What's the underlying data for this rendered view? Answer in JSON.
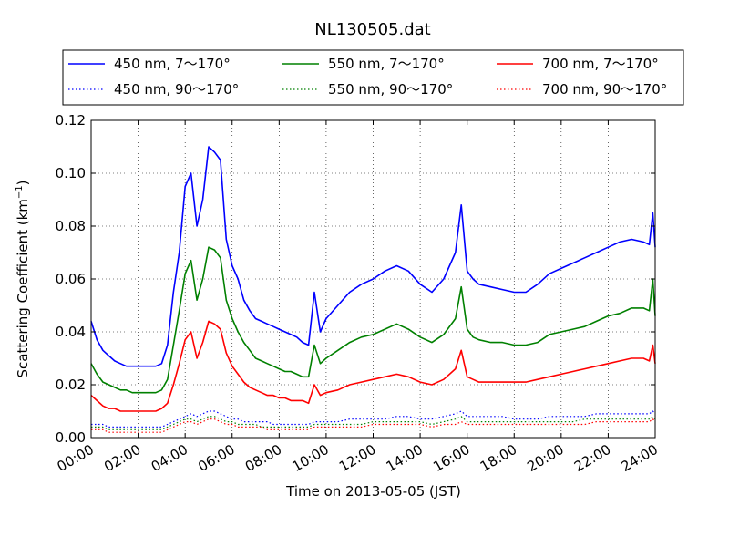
{
  "chart_data": {
    "type": "line",
    "title": "NL130505.dat",
    "xlabel": "Time on 2013-05-05 (JST)",
    "ylabel_main": "Scattering Coefficient (km",
    "ylabel_sup": "−1",
    "ylabel_close": ")",
    "xlim": [
      0,
      24
    ],
    "ylim": [
      0,
      0.12
    ],
    "grid": true,
    "legend_position": "top",
    "x_tick_labels": [
      "00:00",
      "02:00",
      "04:00",
      "06:00",
      "08:00",
      "10:00",
      "12:00",
      "14:00",
      "16:00",
      "18:00",
      "20:00",
      "22:00",
      "24:00"
    ],
    "y_tick_labels": [
      "0.00",
      "0.02",
      "0.04",
      "0.06",
      "0.08",
      "0.10",
      "0.12"
    ],
    "x": [
      0,
      0.25,
      0.5,
      0.75,
      1,
      1.25,
      1.5,
      1.75,
      2,
      2.25,
      2.5,
      2.75,
      3,
      3.25,
      3.5,
      3.75,
      4,
      4.25,
      4.5,
      4.75,
      5,
      5.25,
      5.5,
      5.75,
      6,
      6.25,
      6.5,
      6.75,
      7,
      7.25,
      7.5,
      7.75,
      8,
      8.25,
      8.5,
      8.75,
      9,
      9.25,
      9.5,
      9.75,
      10,
      10.5,
      11,
      11.5,
      12,
      12.5,
      13,
      13.5,
      14,
      14.5,
      15,
      15.5,
      15.75,
      16,
      16.25,
      16.5,
      17,
      17.5,
      18,
      18.5,
      19,
      19.5,
      20,
      20.5,
      21,
      21.5,
      22,
      22.5,
      23,
      23.5,
      23.75,
      23.9,
      24
    ],
    "series": [
      {
        "name": "450 nm, 7～170°",
        "color": "#0000ff",
        "style": "solid",
        "values": [
          0.044,
          0.037,
          0.033,
          0.031,
          0.029,
          0.028,
          0.027,
          0.027,
          0.027,
          0.027,
          0.027,
          0.027,
          0.028,
          0.035,
          0.055,
          0.07,
          0.095,
          0.1,
          0.08,
          0.09,
          0.11,
          0.108,
          0.105,
          0.075,
          0.065,
          0.06,
          0.052,
          0.048,
          0.045,
          0.044,
          0.043,
          0.042,
          0.041,
          0.04,
          0.039,
          0.038,
          0.036,
          0.035,
          0.055,
          0.04,
          0.045,
          0.05,
          0.055,
          0.058,
          0.06,
          0.063,
          0.065,
          0.063,
          0.058,
          0.055,
          0.06,
          0.07,
          0.088,
          0.063,
          0.06,
          0.058,
          0.057,
          0.056,
          0.055,
          0.055,
          0.058,
          0.062,
          0.064,
          0.066,
          0.068,
          0.07,
          0.072,
          0.074,
          0.075,
          0.074,
          0.073,
          0.085,
          0.072
        ]
      },
      {
        "name": "450 nm, 90～170°",
        "color": "#0000ff",
        "style": "dotted",
        "values": [
          0.005,
          0.005,
          0.005,
          0.004,
          0.004,
          0.004,
          0.004,
          0.004,
          0.004,
          0.004,
          0.004,
          0.004,
          0.004,
          0.005,
          0.006,
          0.007,
          0.008,
          0.009,
          0.008,
          0.009,
          0.01,
          0.01,
          0.009,
          0.008,
          0.007,
          0.007,
          0.006,
          0.006,
          0.006,
          0.006,
          0.006,
          0.005,
          0.005,
          0.005,
          0.005,
          0.005,
          0.005,
          0.005,
          0.006,
          0.006,
          0.006,
          0.006,
          0.007,
          0.007,
          0.007,
          0.007,
          0.008,
          0.008,
          0.007,
          0.007,
          0.008,
          0.009,
          0.01,
          0.008,
          0.008,
          0.008,
          0.008,
          0.008,
          0.007,
          0.007,
          0.007,
          0.008,
          0.008,
          0.008,
          0.008,
          0.009,
          0.009,
          0.009,
          0.009,
          0.009,
          0.009,
          0.01,
          0.009
        ]
      },
      {
        "name": "550 nm, 7～170°",
        "color": "#008000",
        "style": "solid",
        "values": [
          0.028,
          0.024,
          0.021,
          0.02,
          0.019,
          0.018,
          0.018,
          0.017,
          0.017,
          0.017,
          0.017,
          0.017,
          0.018,
          0.022,
          0.035,
          0.048,
          0.062,
          0.067,
          0.052,
          0.06,
          0.072,
          0.071,
          0.068,
          0.052,
          0.045,
          0.04,
          0.036,
          0.033,
          0.03,
          0.029,
          0.028,
          0.027,
          0.026,
          0.025,
          0.025,
          0.024,
          0.023,
          0.023,
          0.035,
          0.028,
          0.03,
          0.033,
          0.036,
          0.038,
          0.039,
          0.041,
          0.043,
          0.041,
          0.038,
          0.036,
          0.039,
          0.045,
          0.057,
          0.041,
          0.038,
          0.037,
          0.036,
          0.036,
          0.035,
          0.035,
          0.036,
          0.039,
          0.04,
          0.041,
          0.042,
          0.044,
          0.046,
          0.047,
          0.049,
          0.049,
          0.048,
          0.06,
          0.046
        ]
      },
      {
        "name": "550 nm, 90～170°",
        "color": "#008000",
        "style": "dotted",
        "values": [
          0.004,
          0.004,
          0.004,
          0.003,
          0.003,
          0.003,
          0.003,
          0.003,
          0.003,
          0.003,
          0.003,
          0.003,
          0.003,
          0.004,
          0.005,
          0.006,
          0.007,
          0.007,
          0.006,
          0.007,
          0.008,
          0.008,
          0.007,
          0.006,
          0.006,
          0.005,
          0.005,
          0.005,
          0.005,
          0.004,
          0.004,
          0.004,
          0.004,
          0.004,
          0.004,
          0.004,
          0.004,
          0.004,
          0.005,
          0.005,
          0.005,
          0.005,
          0.005,
          0.005,
          0.006,
          0.006,
          0.006,
          0.006,
          0.006,
          0.005,
          0.006,
          0.007,
          0.008,
          0.006,
          0.006,
          0.006,
          0.006,
          0.006,
          0.006,
          0.006,
          0.006,
          0.006,
          0.006,
          0.006,
          0.007,
          0.007,
          0.007,
          0.007,
          0.007,
          0.007,
          0.007,
          0.008,
          0.007
        ]
      },
      {
        "name": "700 nm, 7～170°",
        "color": "#ff0000",
        "style": "solid",
        "values": [
          0.016,
          0.014,
          0.012,
          0.011,
          0.011,
          0.01,
          0.01,
          0.01,
          0.01,
          0.01,
          0.01,
          0.01,
          0.011,
          0.013,
          0.02,
          0.028,
          0.037,
          0.04,
          0.03,
          0.036,
          0.044,
          0.043,
          0.041,
          0.032,
          0.027,
          0.024,
          0.021,
          0.019,
          0.018,
          0.017,
          0.016,
          0.016,
          0.015,
          0.015,
          0.014,
          0.014,
          0.014,
          0.013,
          0.02,
          0.016,
          0.017,
          0.018,
          0.02,
          0.021,
          0.022,
          0.023,
          0.024,
          0.023,
          0.021,
          0.02,
          0.022,
          0.026,
          0.033,
          0.023,
          0.022,
          0.021,
          0.021,
          0.021,
          0.021,
          0.021,
          0.022,
          0.023,
          0.024,
          0.025,
          0.026,
          0.027,
          0.028,
          0.029,
          0.03,
          0.03,
          0.029,
          0.035,
          0.028
        ]
      },
      {
        "name": "700 nm, 90～170°",
        "color": "#ff0000",
        "style": "dotted",
        "values": [
          0.003,
          0.003,
          0.003,
          0.002,
          0.002,
          0.002,
          0.002,
          0.002,
          0.002,
          0.002,
          0.002,
          0.002,
          0.002,
          0.003,
          0.004,
          0.005,
          0.006,
          0.006,
          0.005,
          0.006,
          0.007,
          0.007,
          0.006,
          0.005,
          0.005,
          0.004,
          0.004,
          0.004,
          0.004,
          0.004,
          0.003,
          0.003,
          0.003,
          0.003,
          0.003,
          0.003,
          0.003,
          0.003,
          0.004,
          0.004,
          0.004,
          0.004,
          0.004,
          0.004,
          0.005,
          0.005,
          0.005,
          0.005,
          0.005,
          0.004,
          0.005,
          0.005,
          0.006,
          0.005,
          0.005,
          0.005,
          0.005,
          0.005,
          0.005,
          0.005,
          0.005,
          0.005,
          0.005,
          0.005,
          0.005,
          0.006,
          0.006,
          0.006,
          0.006,
          0.006,
          0.006,
          0.007,
          0.006
        ]
      }
    ]
  }
}
